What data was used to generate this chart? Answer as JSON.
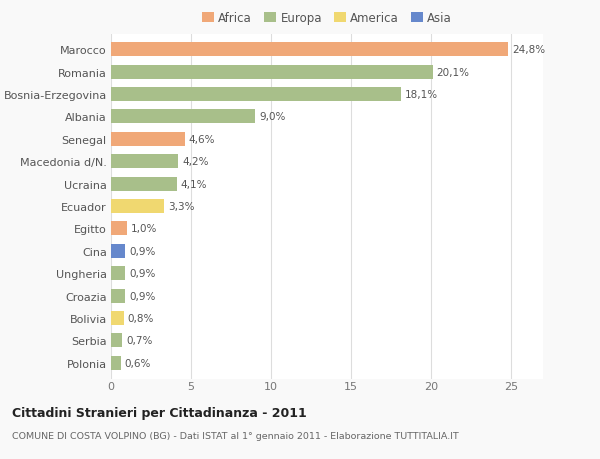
{
  "countries": [
    "Marocco",
    "Romania",
    "Bosnia-Erzegovina",
    "Albania",
    "Senegal",
    "Macedonia d/N.",
    "Ucraina",
    "Ecuador",
    "Egitto",
    "Cina",
    "Ungheria",
    "Croazia",
    "Bolivia",
    "Serbia",
    "Polonia"
  ],
  "values": [
    24.8,
    20.1,
    18.1,
    9.0,
    4.6,
    4.2,
    4.1,
    3.3,
    1.0,
    0.9,
    0.9,
    0.9,
    0.8,
    0.7,
    0.6
  ],
  "labels": [
    "24,8%",
    "20,1%",
    "18,1%",
    "9,0%",
    "4,6%",
    "4,2%",
    "4,1%",
    "3,3%",
    "1,0%",
    "0,9%",
    "0,9%",
    "0,9%",
    "0,8%",
    "0,7%",
    "0,6%"
  ],
  "colors": [
    "#F0A878",
    "#A8BF8A",
    "#A8BF8A",
    "#A8BF8A",
    "#F0A878",
    "#A8BF8A",
    "#A8BF8A",
    "#F0D870",
    "#F0A878",
    "#6688CC",
    "#A8BF8A",
    "#A8BF8A",
    "#F0D870",
    "#A8BF8A",
    "#A8BF8A"
  ],
  "legend": [
    {
      "label": "Africa",
      "color": "#F0A878"
    },
    {
      "label": "Europa",
      "color": "#A8BF8A"
    },
    {
      "label": "America",
      "color": "#F0D870"
    },
    {
      "label": "Asia",
      "color": "#6688CC"
    }
  ],
  "xlim": [
    0,
    27
  ],
  "xticks": [
    0,
    5,
    10,
    15,
    20,
    25
  ],
  "title": "Cittadini Stranieri per Cittadinanza - 2011",
  "subtitle": "COMUNE DI COSTA VOLPINO (BG) - Dati ISTAT al 1° gennaio 2011 - Elaborazione TUTTITALIA.IT",
  "background_color": "#f9f9f9",
  "plot_bg_color": "#ffffff"
}
